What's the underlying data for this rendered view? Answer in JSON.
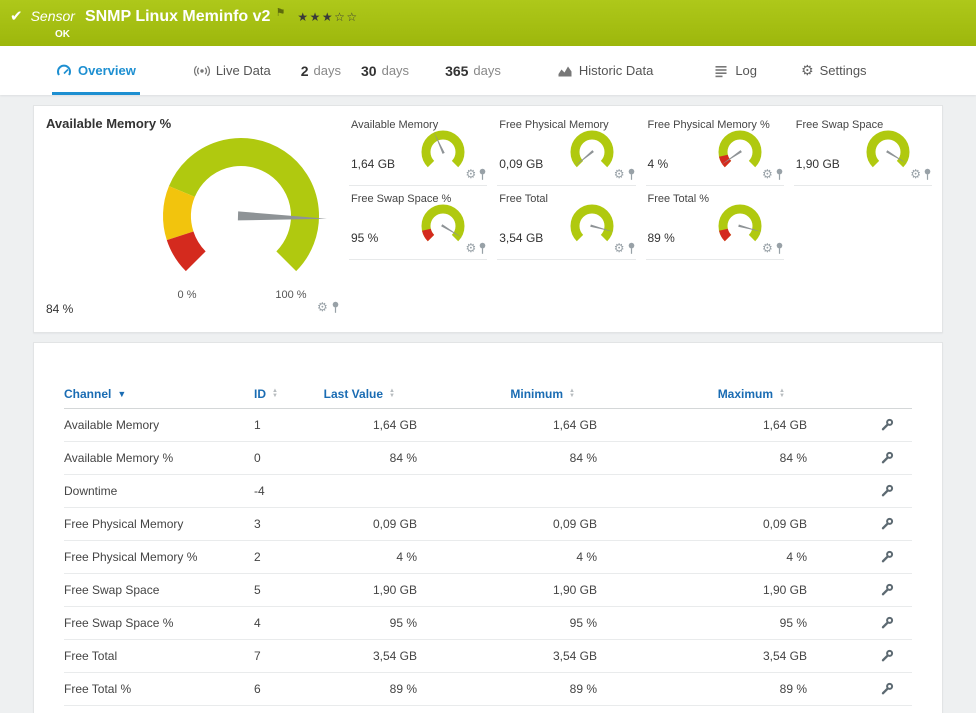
{
  "header": {
    "kind_label": "Sensor",
    "title": "SNMP Linux Meminfo v2",
    "status": "OK",
    "stars": "★★★☆☆",
    "flag": "⚑",
    "check": "✔"
  },
  "tabs": [
    {
      "label": "Overview",
      "active": true
    },
    {
      "label": "Live Data"
    },
    {
      "number": "2",
      "label": "days"
    },
    {
      "number": "30",
      "label": "days"
    },
    {
      "number": "365",
      "label": "days"
    },
    {
      "label": "Historic Data"
    },
    {
      "label": "Log"
    },
    {
      "label": "Settings"
    }
  ],
  "main_gauge": {
    "title": "Available Memory %",
    "value": "84 %",
    "percent": 84,
    "min_label": "0 %",
    "max_label": "100 %"
  },
  "small_gauges": [
    {
      "label": "Available Memory",
      "value": "1,64 GB",
      "percent": 41,
      "red": false
    },
    {
      "label": "Free Physical Memory",
      "value": "0,09 GB",
      "percent": 2,
      "red": false
    },
    {
      "label": "Free Physical Memory %",
      "value": "4 %",
      "percent": 4,
      "red": true
    },
    {
      "label": "Free Swap Space",
      "value": "1,90 GB",
      "percent": 95,
      "red": false
    },
    {
      "label": "Free Swap Space %",
      "value": "95 %",
      "percent": 95,
      "red": true
    },
    {
      "label": "Free Total",
      "value": "3,54 GB",
      "percent": 89,
      "red": false
    },
    {
      "label": "Free Total %",
      "value": "89 %",
      "percent": 89,
      "red": true
    }
  ],
  "table": {
    "headers": [
      "Channel",
      "ID",
      "Last Value",
      "Minimum",
      "Maximum"
    ],
    "rows": [
      {
        "channel": "Available Memory",
        "id": "1",
        "last": "1,64 GB",
        "min": "1,64 GB",
        "max": "1,64 GB"
      },
      {
        "channel": "Available Memory %",
        "id": "0",
        "last": "84 %",
        "min": "84 %",
        "max": "84 %"
      },
      {
        "channel": "Downtime",
        "id": "-4",
        "last": "",
        "min": "",
        "max": ""
      },
      {
        "channel": "Free Physical Memory",
        "id": "3",
        "last": "0,09 GB",
        "min": "0,09 GB",
        "max": "0,09 GB"
      },
      {
        "channel": "Free Physical Memory %",
        "id": "2",
        "last": "4 %",
        "min": "4 %",
        "max": "4 %"
      },
      {
        "channel": "Free Swap Space",
        "id": "5",
        "last": "1,90 GB",
        "min": "1,90 GB",
        "max": "1,90 GB"
      },
      {
        "channel": "Free Swap Space %",
        "id": "4",
        "last": "95 %",
        "min": "95 %",
        "max": "95 %"
      },
      {
        "channel": "Free Total",
        "id": "7",
        "last": "3,54 GB",
        "min": "3,54 GB",
        "max": "3,54 GB"
      },
      {
        "channel": "Free Total %",
        "id": "6",
        "last": "89 %",
        "min": "89 %",
        "max": "89 %"
      }
    ]
  },
  "colors": {
    "header_green": "#a4c014",
    "accent_blue": "#1d8fd1",
    "table_header_blue": "#1a6cb3",
    "gauge_green": "#b0c90f",
    "gauge_yellow": "#f2c40d",
    "gauge_red": "#d42a1e"
  }
}
